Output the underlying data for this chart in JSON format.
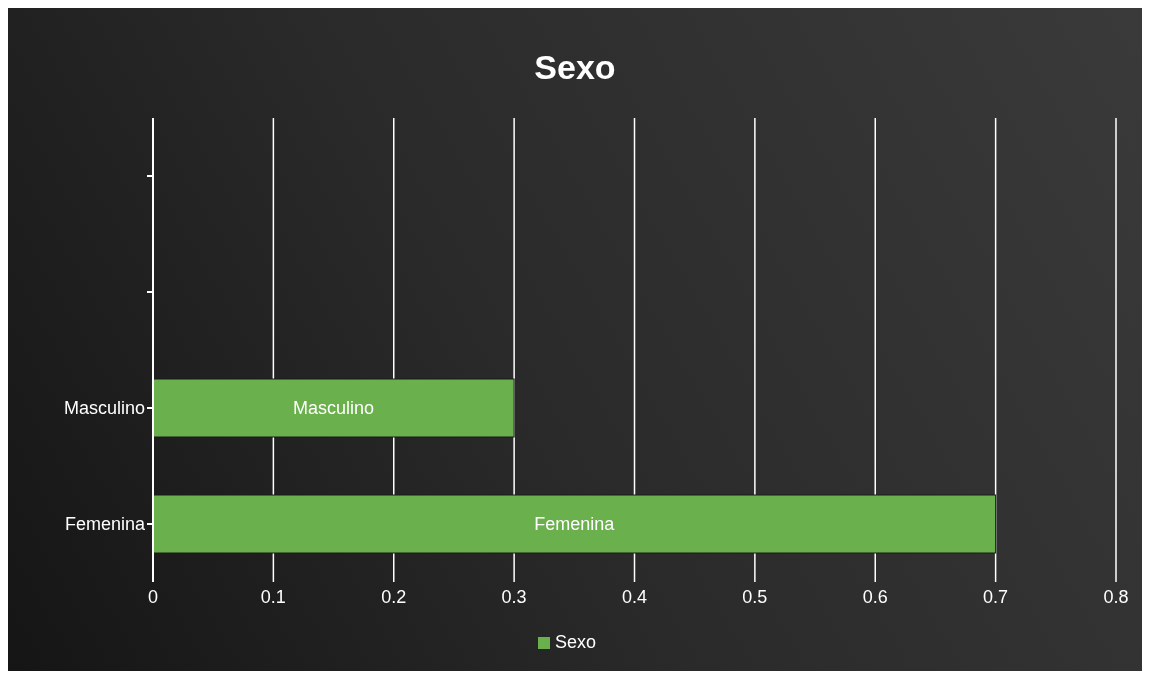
{
  "chart_data": {
    "type": "bar",
    "orientation": "horizontal",
    "title": "Sexo",
    "categories": [
      null,
      null,
      "Masculino",
      "Femenina"
    ],
    "series": [
      {
        "name": "Sexo",
        "color": "#6ab04c",
        "values": [
          null,
          null,
          0.3,
          0.7
        ],
        "value_labels": [
          null,
          null,
          "Masculino",
          "Femenina"
        ]
      }
    ],
    "xlim": [
      0,
      0.8
    ],
    "xticks": [
      0,
      0.1,
      0.2,
      0.3,
      0.4,
      0.5,
      0.6,
      0.7,
      0.8
    ],
    "grid": "x",
    "legend": "bottom"
  }
}
